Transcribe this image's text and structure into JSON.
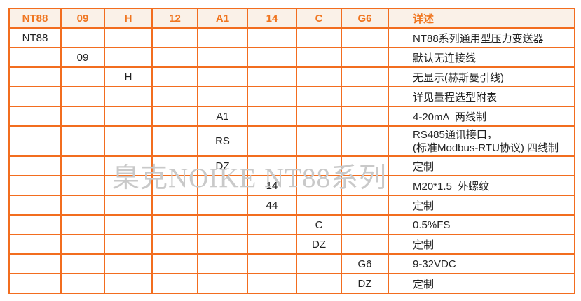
{
  "colors": {
    "border": "#f26d1f",
    "accent": "#f0751f",
    "header_bg": "#faf1e8",
    "text": "#212121",
    "watermark": "#c9c9c9"
  },
  "watermark_text": "臬克NOIKE NT88系列",
  "table": {
    "headers": [
      "NT88",
      "09",
      "H",
      "12",
      "A1",
      "14",
      "C",
      "G6",
      "详述"
    ],
    "rows": [
      {
        "col": 0,
        "code": "NT88",
        "desc": "NT88系列通用型压力变送器"
      },
      {
        "col": 1,
        "code": "09",
        "desc": "默认无连接线"
      },
      {
        "col": 2,
        "code": "H",
        "desc": "无显示(赫斯曼引线)"
      },
      {
        "col": 3,
        "code": "",
        "desc": "详见量程选型附表"
      },
      {
        "col": 4,
        "code": "A1",
        "desc": "4-20mA  两线制"
      },
      {
        "col": 4,
        "code": "RS",
        "desc": "RS485通讯接口，",
        "desc2": "(标准Modbus-RTU协议) 四线制"
      },
      {
        "col": 4,
        "code": "DZ",
        "desc": "定制"
      },
      {
        "col": 5,
        "code": "14",
        "desc": "M20*1.5  外螺纹"
      },
      {
        "col": 5,
        "code": "44",
        "desc": "定制"
      },
      {
        "col": 6,
        "code": "C",
        "desc": "0.5%FS"
      },
      {
        "col": 6,
        "code": "DZ",
        "desc": "定制"
      },
      {
        "col": 7,
        "code": "G6",
        "desc": "9-32VDC"
      },
      {
        "col": 7,
        "code": "DZ",
        "desc": "定制"
      }
    ]
  }
}
